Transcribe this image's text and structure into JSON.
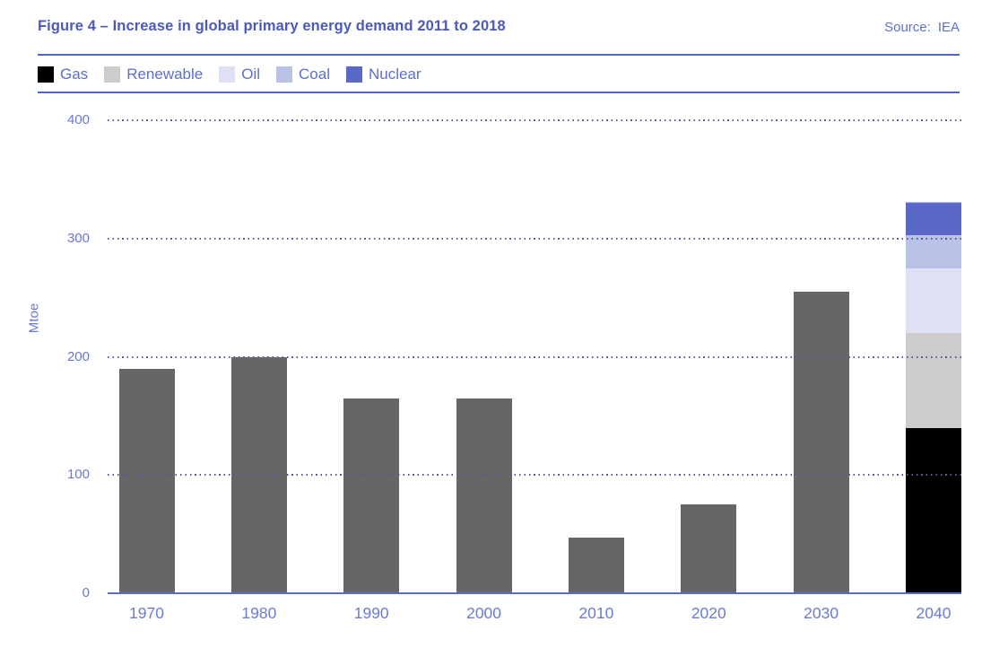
{
  "header": {
    "title": "Figure 4 – Increase in global primary energy demand 2011 to 2018",
    "source_label": "Source:",
    "source_value": "IEA"
  },
  "chart_data": {
    "type": "bar",
    "title": "Figure 4 – Increase in global primary energy demand 2011 to 2018",
    "source": "IEA",
    "xlabel": "",
    "ylabel": "Mtoe",
    "ylim": [
      0,
      400
    ],
    "yticks": [
      400,
      300,
      200,
      100,
      0
    ],
    "grid": "horizontal dotted",
    "legend_position": "top",
    "categories": [
      "1970",
      "1980",
      "1990",
      "2000",
      "2010",
      "2020",
      "2030",
      "2040"
    ],
    "default_bar_color": "#666666",
    "legend": [
      {
        "label": "Gas",
        "color": "#000000"
      },
      {
        "label": "Renewable",
        "color": "#cccccc"
      },
      {
        "label": "Oil",
        "color": "#dde1f3"
      },
      {
        "label": "Coal",
        "color": "#b9c1e5"
      },
      {
        "label": "Nuclear",
        "color": "#5a69c8"
      }
    ],
    "bars": [
      {
        "category": "1970",
        "total": 190,
        "segments": [
          {
            "name": "Total",
            "value": 190,
            "color": "#666666"
          }
        ]
      },
      {
        "category": "1980",
        "total": 200,
        "segments": [
          {
            "name": "Total",
            "value": 200,
            "color": "#666666"
          }
        ]
      },
      {
        "category": "1990",
        "total": 165,
        "segments": [
          {
            "name": "Total",
            "value": 165,
            "color": "#666666"
          }
        ]
      },
      {
        "category": "2000",
        "total": 165,
        "segments": [
          {
            "name": "Total",
            "value": 165,
            "color": "#666666"
          }
        ]
      },
      {
        "category": "2010",
        "total": 47,
        "segments": [
          {
            "name": "Total",
            "value": 47,
            "color": "#666666"
          }
        ]
      },
      {
        "category": "2020",
        "total": 75,
        "segments": [
          {
            "name": "Total",
            "value": 75,
            "color": "#666666"
          }
        ]
      },
      {
        "category": "2030",
        "total": 255,
        "segments": [
          {
            "name": "Total",
            "value": 255,
            "color": "#666666"
          }
        ]
      },
      {
        "category": "2040",
        "total": 330,
        "segments": [
          {
            "name": "Gas",
            "value": 140,
            "color": "#000000"
          },
          {
            "name": "Renewable",
            "value": 80,
            "color": "#cccccc"
          },
          {
            "name": "Oil",
            "value": 55,
            "color": "#dde1f3"
          },
          {
            "name": "Coal",
            "value": 28,
            "color": "#b9c1e5"
          },
          {
            "name": "Nuclear",
            "value": 27,
            "color": "#5a69c8"
          }
        ]
      }
    ]
  }
}
